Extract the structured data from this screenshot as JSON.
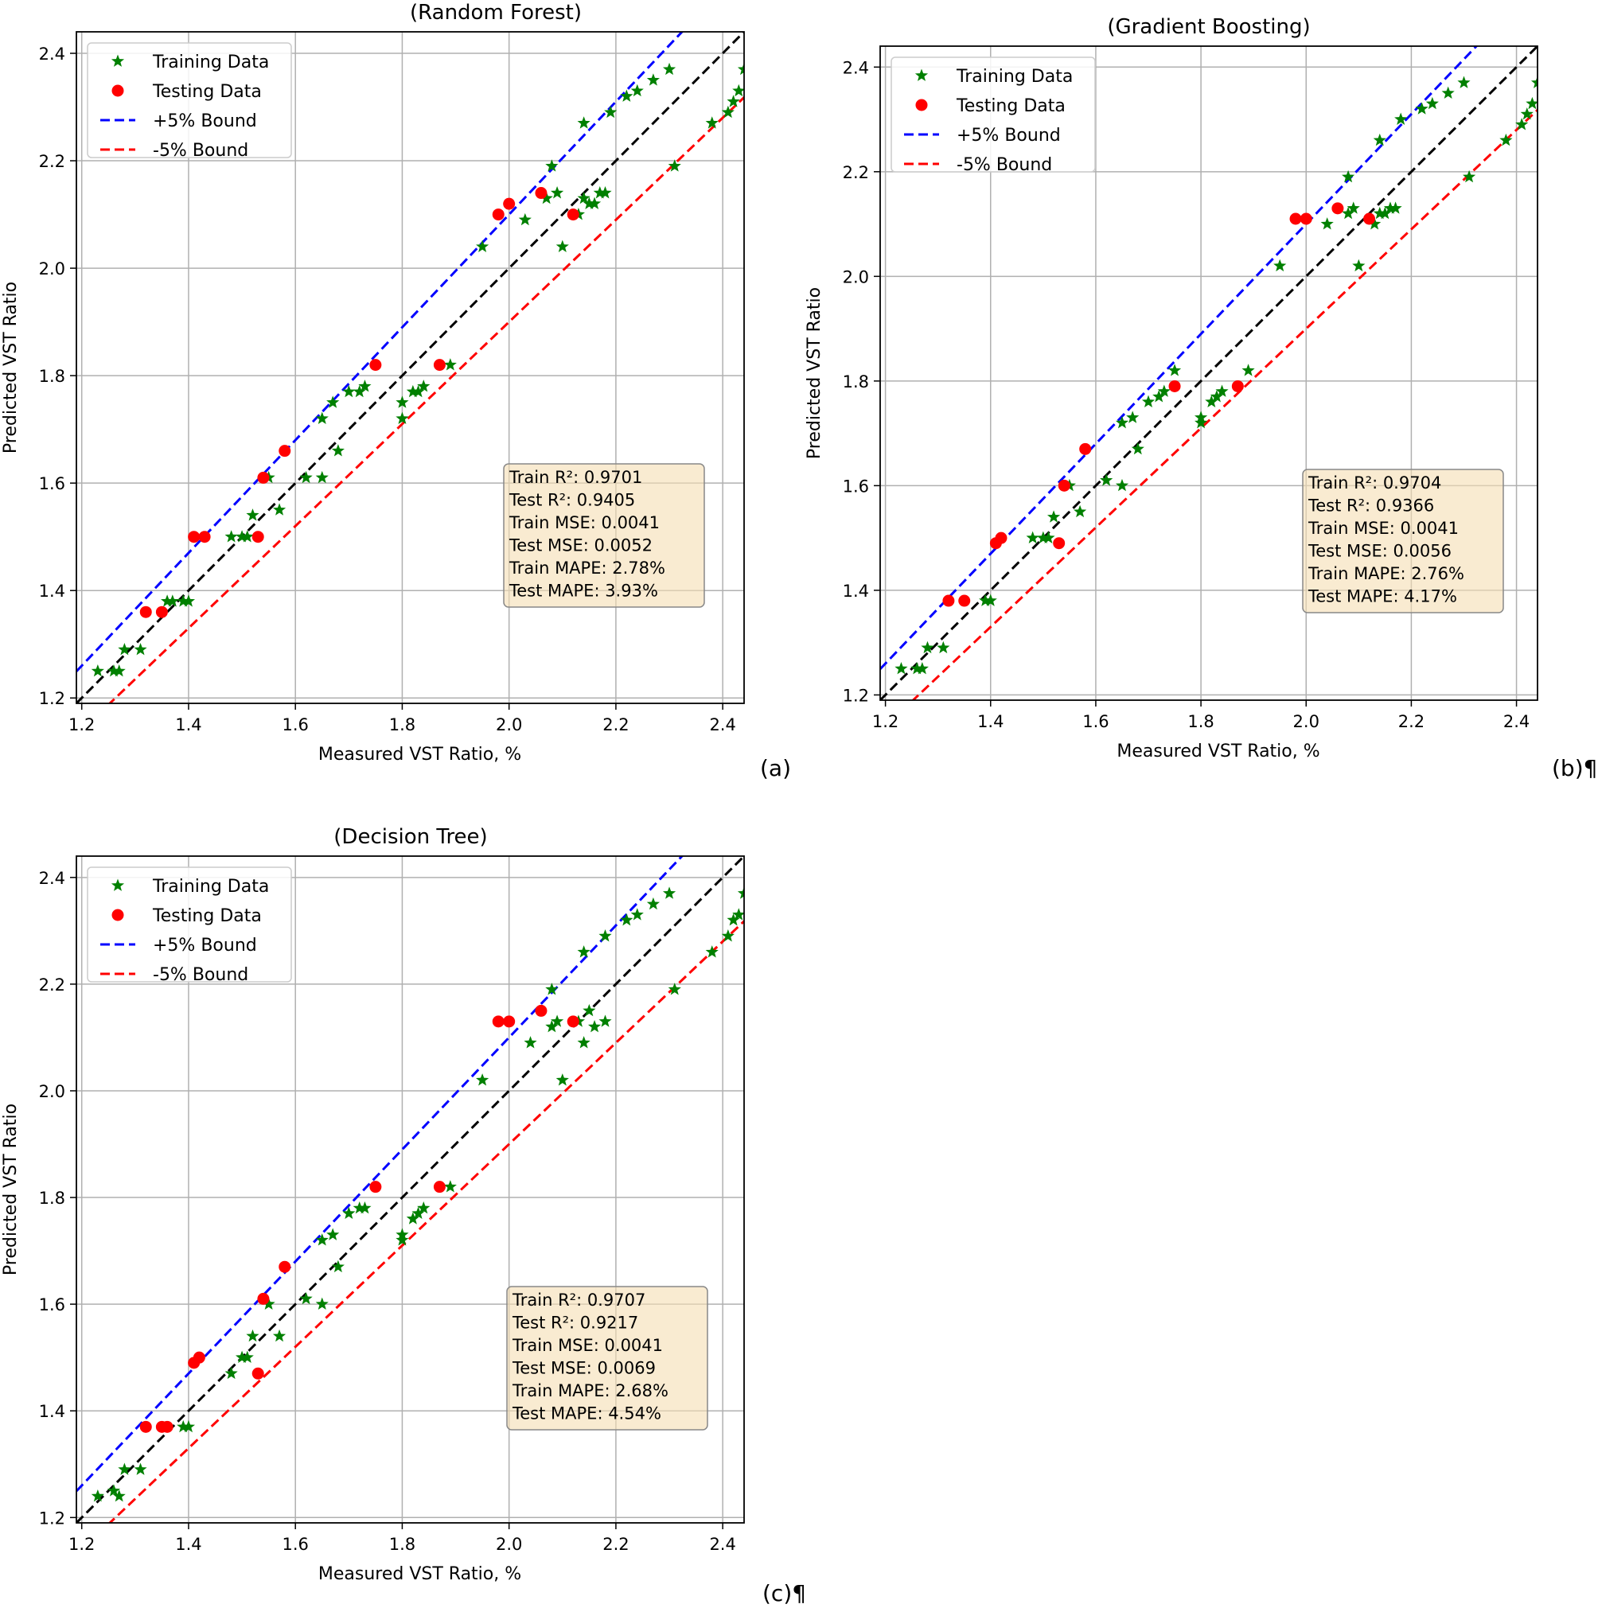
{
  "chart_data": [
    {
      "type": "scatter",
      "title": "(Random Forest)",
      "panel_label": "(a)",
      "xlabel": "Measured VST Ratio, %",
      "ylabel": "Predicted VST Ratio",
      "xlim": [
        1.19,
        2.44
      ],
      "ylim": [
        1.19,
        2.44
      ],
      "xticks": [
        "1.2",
        "1.4",
        "1.6",
        "1.8",
        "2.0",
        "2.2",
        "2.4"
      ],
      "yticks": [
        "1.2",
        "1.4",
        "1.6",
        "1.8",
        "2.0",
        "2.2",
        "2.4"
      ],
      "grid": true,
      "legend": {
        "position": "top-left",
        "entries": [
          "Training Data",
          "Testing Data",
          "+5% Bound",
          "-5% Bound"
        ]
      },
      "series": [
        {
          "name": "Training Data",
          "marker": "star",
          "color": "#008000",
          "points": [
            [
              1.23,
              1.25
            ],
            [
              1.26,
              1.25
            ],
            [
              1.27,
              1.25
            ],
            [
              1.28,
              1.29
            ],
            [
              1.31,
              1.29
            ],
            [
              1.36,
              1.38
            ],
            [
              1.37,
              1.38
            ],
            [
              1.39,
              1.38
            ],
            [
              1.4,
              1.38
            ],
            [
              1.48,
              1.5
            ],
            [
              1.5,
              1.5
            ],
            [
              1.51,
              1.5
            ],
            [
              1.52,
              1.54
            ],
            [
              1.55,
              1.61
            ],
            [
              1.57,
              1.55
            ],
            [
              1.62,
              1.61
            ],
            [
              1.65,
              1.61
            ],
            [
              1.65,
              1.72
            ],
            [
              1.67,
              1.75
            ],
            [
              1.68,
              1.66
            ],
            [
              1.7,
              1.77
            ],
            [
              1.72,
              1.77
            ],
            [
              1.73,
              1.78
            ],
            [
              1.8,
              1.72
            ],
            [
              1.8,
              1.75
            ],
            [
              1.82,
              1.77
            ],
            [
              1.83,
              1.77
            ],
            [
              1.84,
              1.78
            ],
            [
              1.89,
              1.82
            ],
            [
              1.95,
              2.04
            ],
            [
              2.03,
              2.09
            ],
            [
              2.07,
              2.13
            ],
            [
              2.08,
              2.19
            ],
            [
              2.09,
              2.14
            ],
            [
              2.1,
              2.04
            ],
            [
              2.13,
              2.1
            ],
            [
              2.14,
              2.13
            ],
            [
              2.15,
              2.12
            ],
            [
              2.16,
              2.12
            ],
            [
              2.17,
              2.14
            ],
            [
              2.18,
              2.14
            ],
            [
              2.14,
              2.27
            ],
            [
              2.19,
              2.29
            ],
            [
              2.22,
              2.32
            ],
            [
              2.24,
              2.33
            ],
            [
              2.27,
              2.35
            ],
            [
              2.3,
              2.37
            ],
            [
              2.31,
              2.19
            ],
            [
              2.38,
              2.27
            ],
            [
              2.41,
              2.29
            ],
            [
              2.42,
              2.31
            ],
            [
              2.43,
              2.33
            ],
            [
              2.44,
              2.37
            ]
          ]
        },
        {
          "name": "Testing Data",
          "marker": "circle",
          "color": "#ff0000",
          "points": [
            [
              1.32,
              1.36
            ],
            [
              1.35,
              1.36
            ],
            [
              1.41,
              1.5
            ],
            [
              1.43,
              1.5
            ],
            [
              1.53,
              1.5
            ],
            [
              1.54,
              1.61
            ],
            [
              1.58,
              1.66
            ],
            [
              1.75,
              1.82
            ],
            [
              1.87,
              1.82
            ],
            [
              1.98,
              2.1
            ],
            [
              2.0,
              2.12
            ],
            [
              2.06,
              2.14
            ],
            [
              2.12,
              2.1
            ]
          ]
        }
      ],
      "lines": [
        {
          "name": "+5% Bound",
          "style": "dashed",
          "color": "#0000ff",
          "factor": 1.05
        },
        {
          "name": "-5% Bound",
          "style": "dashed",
          "color": "#ff0000",
          "factor": 0.95
        },
        {
          "name": "",
          "style": "dashed",
          "color": "#000000",
          "factor": 1.0
        }
      ],
      "annotation": [
        "Train R²: 0.9701",
        "Test R²: 0.9405",
        "Train MSE: 0.0041",
        "Test MSE: 0.0052",
        "Train MAPE: 2.78%",
        "Test MAPE: 3.93%"
      ]
    },
    {
      "type": "scatter",
      "title": "(Gradient Boosting)",
      "panel_label": "(b)¶",
      "xlabel": "Measured VST Ratio, %",
      "ylabel": "Predicted VST Ratio",
      "xlim": [
        1.19,
        2.44
      ],
      "ylim": [
        1.19,
        2.44
      ],
      "xticks": [
        "1.2",
        "1.4",
        "1.6",
        "1.8",
        "2.0",
        "2.2",
        "2.4"
      ],
      "yticks": [
        "1.2",
        "1.4",
        "1.6",
        "1.8",
        "2.0",
        "2.2",
        "2.4"
      ],
      "grid": true,
      "legend": {
        "position": "top-left",
        "entries": [
          "Training Data",
          "Testing Data",
          "+5% Bound",
          "-5% Bound"
        ]
      },
      "series": [
        {
          "name": "Training Data",
          "marker": "star",
          "color": "#008000",
          "points": [
            [
              1.23,
              1.25
            ],
            [
              1.26,
              1.25
            ],
            [
              1.27,
              1.25
            ],
            [
              1.28,
              1.29
            ],
            [
              1.31,
              1.29
            ],
            [
              1.39,
              1.38
            ],
            [
              1.4,
              1.38
            ],
            [
              1.48,
              1.5
            ],
            [
              1.5,
              1.5
            ],
            [
              1.51,
              1.5
            ],
            [
              1.52,
              1.54
            ],
            [
              1.55,
              1.6
            ],
            [
              1.57,
              1.55
            ],
            [
              1.62,
              1.61
            ],
            [
              1.65,
              1.6
            ],
            [
              1.65,
              1.72
            ],
            [
              1.67,
              1.73
            ],
            [
              1.68,
              1.67
            ],
            [
              1.7,
              1.76
            ],
            [
              1.72,
              1.77
            ],
            [
              1.73,
              1.78
            ],
            [
              1.75,
              1.82
            ],
            [
              1.8,
              1.72
            ],
            [
              1.8,
              1.73
            ],
            [
              1.82,
              1.76
            ],
            [
              1.83,
              1.77
            ],
            [
              1.84,
              1.78
            ],
            [
              1.89,
              1.82
            ],
            [
              1.95,
              2.02
            ],
            [
              2.04,
              2.1
            ],
            [
              2.08,
              2.12
            ],
            [
              2.08,
              2.19
            ],
            [
              2.09,
              2.13
            ],
            [
              2.1,
              2.02
            ],
            [
              2.13,
              2.1
            ],
            [
              2.14,
              2.12
            ],
            [
              2.15,
              2.12
            ],
            [
              2.16,
              2.13
            ],
            [
              2.17,
              2.13
            ],
            [
              2.14,
              2.26
            ],
            [
              2.18,
              2.3
            ],
            [
              2.22,
              2.32
            ],
            [
              2.24,
              2.33
            ],
            [
              2.27,
              2.35
            ],
            [
              2.3,
              2.37
            ],
            [
              2.31,
              2.19
            ],
            [
              2.38,
              2.26
            ],
            [
              2.41,
              2.29
            ],
            [
              2.42,
              2.31
            ],
            [
              2.43,
              2.33
            ],
            [
              2.44,
              2.37
            ]
          ]
        },
        {
          "name": "Testing Data",
          "marker": "circle",
          "color": "#ff0000",
          "points": [
            [
              1.32,
              1.38
            ],
            [
              1.35,
              1.38
            ],
            [
              1.41,
              1.49
            ],
            [
              1.42,
              1.5
            ],
            [
              1.53,
              1.49
            ],
            [
              1.54,
              1.6
            ],
            [
              1.58,
              1.67
            ],
            [
              1.75,
              1.79
            ],
            [
              1.87,
              1.79
            ],
            [
              1.98,
              2.11
            ],
            [
              2.0,
              2.11
            ],
            [
              2.06,
              2.13
            ],
            [
              2.12,
              2.11
            ]
          ]
        }
      ],
      "lines": [
        {
          "name": "+5% Bound",
          "style": "dashed",
          "color": "#0000ff",
          "factor": 1.05
        },
        {
          "name": "-5% Bound",
          "style": "dashed",
          "color": "#ff0000",
          "factor": 0.95
        },
        {
          "name": "",
          "style": "dashed",
          "color": "#000000",
          "factor": 1.0
        }
      ],
      "annotation": [
        "Train R²: 0.9704",
        "Test R²: 0.9366",
        "Train MSE: 0.0041",
        "Test MSE: 0.0056",
        "Train MAPE: 2.76%",
        "Test MAPE: 4.17%"
      ]
    },
    {
      "type": "scatter",
      "title": "(Decision Tree)",
      "panel_label": "(c)¶",
      "xlabel": "Measured VST Ratio, %",
      "ylabel": "Predicted VST Ratio",
      "xlim": [
        1.19,
        2.44
      ],
      "ylim": [
        1.19,
        2.44
      ],
      "xticks": [
        "1.2",
        "1.4",
        "1.6",
        "1.8",
        "2.0",
        "2.2",
        "2.4"
      ],
      "yticks": [
        "1.2",
        "1.4",
        "1.6",
        "1.8",
        "2.0",
        "2.2",
        "2.4"
      ],
      "grid": true,
      "legend": {
        "position": "top-left",
        "entries": [
          "Training Data",
          "Testing Data",
          "+5% Bound",
          "-5% Bound"
        ]
      },
      "series": [
        {
          "name": "Training Data",
          "marker": "star",
          "color": "#008000",
          "points": [
            [
              1.23,
              1.24
            ],
            [
              1.26,
              1.25
            ],
            [
              1.27,
              1.24
            ],
            [
              1.28,
              1.29
            ],
            [
              1.31,
              1.29
            ],
            [
              1.39,
              1.37
            ],
            [
              1.4,
              1.37
            ],
            [
              1.48,
              1.47
            ],
            [
              1.5,
              1.5
            ],
            [
              1.51,
              1.5
            ],
            [
              1.52,
              1.54
            ],
            [
              1.55,
              1.6
            ],
            [
              1.57,
              1.54
            ],
            [
              1.62,
              1.61
            ],
            [
              1.65,
              1.6
            ],
            [
              1.65,
              1.72
            ],
            [
              1.67,
              1.73
            ],
            [
              1.68,
              1.67
            ],
            [
              1.7,
              1.77
            ],
            [
              1.72,
              1.78
            ],
            [
              1.73,
              1.78
            ],
            [
              1.8,
              1.72
            ],
            [
              1.8,
              1.73
            ],
            [
              1.82,
              1.76
            ],
            [
              1.83,
              1.77
            ],
            [
              1.84,
              1.78
            ],
            [
              1.89,
              1.82
            ],
            [
              1.95,
              2.02
            ],
            [
              2.04,
              2.09
            ],
            [
              2.08,
              2.12
            ],
            [
              2.08,
              2.19
            ],
            [
              2.09,
              2.13
            ],
            [
              2.1,
              2.02
            ],
            [
              2.13,
              2.13
            ],
            [
              2.14,
              2.09
            ],
            [
              2.15,
              2.15
            ],
            [
              2.16,
              2.12
            ],
            [
              2.18,
              2.13
            ],
            [
              2.14,
              2.26
            ],
            [
              2.18,
              2.29
            ],
            [
              2.22,
              2.32
            ],
            [
              2.24,
              2.33
            ],
            [
              2.27,
              2.35
            ],
            [
              2.3,
              2.37
            ],
            [
              2.31,
              2.19
            ],
            [
              2.38,
              2.26
            ],
            [
              2.41,
              2.29
            ],
            [
              2.42,
              2.32
            ],
            [
              2.43,
              2.33
            ],
            [
              2.44,
              2.37
            ]
          ]
        },
        {
          "name": "Testing Data",
          "marker": "circle",
          "color": "#ff0000",
          "points": [
            [
              1.32,
              1.37
            ],
            [
              1.35,
              1.37
            ],
            [
              1.36,
              1.37
            ],
            [
              1.41,
              1.49
            ],
            [
              1.42,
              1.5
            ],
            [
              1.53,
              1.47
            ],
            [
              1.54,
              1.61
            ],
            [
              1.58,
              1.67
            ],
            [
              1.75,
              1.82
            ],
            [
              1.87,
              1.82
            ],
            [
              1.98,
              2.13
            ],
            [
              2.0,
              2.13
            ],
            [
              2.06,
              2.15
            ],
            [
              2.12,
              2.13
            ]
          ]
        }
      ],
      "lines": [
        {
          "name": "+5% Bound",
          "style": "dashed",
          "color": "#0000ff",
          "factor": 1.05
        },
        {
          "name": "-5% Bound",
          "style": "dashed",
          "color": "#ff0000",
          "factor": 0.95
        },
        {
          "name": "",
          "style": "dashed",
          "color": "#000000",
          "factor": 1.0
        }
      ],
      "annotation": [
        "Train R²: 0.9707",
        "Test R²: 0.9217",
        "Train MSE: 0.0041",
        "Test MSE: 0.0069",
        "Train MAPE: 2.68%",
        "Test MAPE: 4.54%"
      ]
    }
  ]
}
